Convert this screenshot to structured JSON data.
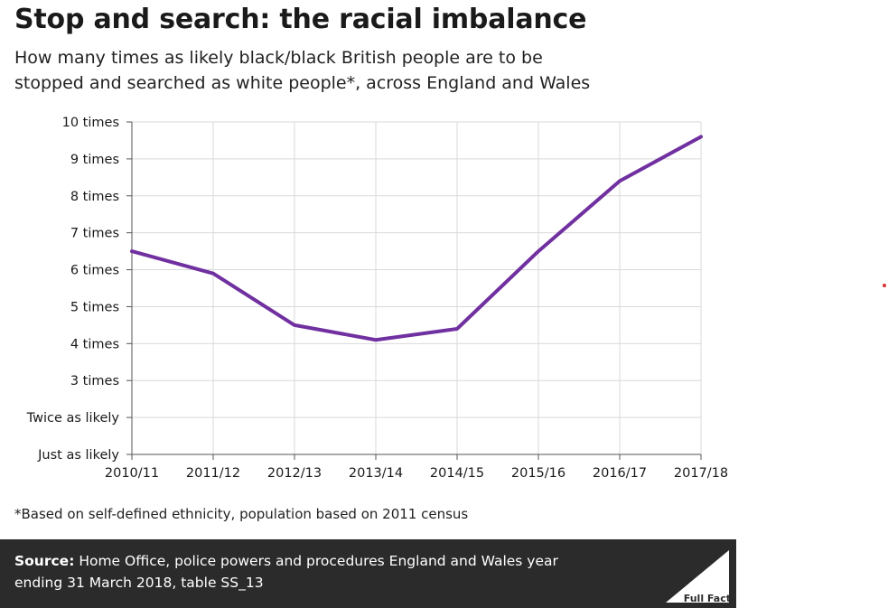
{
  "title": "Stop and search: the racial imbalance",
  "subtitle_line1": "How many times as likely black/black British people are to be",
  "subtitle_line2": "stopped and searched as white people*, across England and Wales",
  "footnote": "*Based on self-defined ethnicity, population based on 2011 census",
  "source": {
    "label": "Source:",
    "line1": " Home Office, police powers and procedures England and Wales year",
    "line2": "ending 31 March 2018, table SS_13"
  },
  "logo_text": "Full Fact",
  "colors": {
    "line": "#7030a0",
    "source_bg": "#2b2b2b",
    "grid": "#d9d9d9"
  },
  "chart_data": {
    "type": "line",
    "categories": [
      "2010/11",
      "2011/12",
      "2012/13",
      "2013/14",
      "2014/15",
      "2015/16",
      "2016/17",
      "2017/18"
    ],
    "series": [
      {
        "values": [
          6.5,
          5.9,
          4.5,
          4.1,
          4.4,
          6.5,
          8.4,
          9.6
        ]
      }
    ],
    "ylim": [
      1,
      10
    ],
    "y_ticks": [
      {
        "value": 1,
        "label": "Just as likely"
      },
      {
        "value": 2,
        "label": "Twice as likely"
      },
      {
        "value": 3,
        "label": "3 times"
      },
      {
        "value": 4,
        "label": "4 times"
      },
      {
        "value": 5,
        "label": "5 times"
      },
      {
        "value": 6,
        "label": "6 times"
      },
      {
        "value": 7,
        "label": "7 times"
      },
      {
        "value": 8,
        "label": "8 times"
      },
      {
        "value": 9,
        "label": "9 times"
      },
      {
        "value": 10,
        "label": "10 times"
      }
    ],
    "grid": true,
    "legend": "none"
  }
}
